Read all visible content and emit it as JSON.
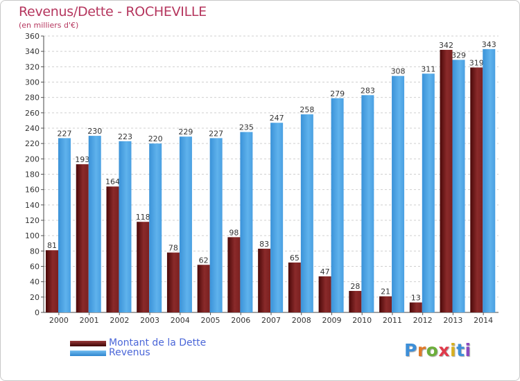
{
  "header": {
    "title": "Revenus/Dette - ROCHEVILLE",
    "subtitle": "(en milliers d'€)"
  },
  "legend": {
    "items": [
      {
        "label": "Montant de la Dette",
        "color": "#7a1b1b"
      },
      {
        "label": "Revenus",
        "color": "#4ea6e6"
      }
    ]
  },
  "logo": {
    "text": "Proxiti"
  },
  "chart_data": {
    "type": "bar",
    "categories": [
      "2000",
      "2001",
      "2002",
      "2003",
      "2004",
      "2005",
      "2006",
      "2007",
      "2008",
      "2009",
      "2010",
      "2011",
      "2012",
      "2013",
      "2014"
    ],
    "series": [
      {
        "name": "Montant de la Dette",
        "color": "#7a1b1b",
        "values": [
          81,
          193,
          164,
          118,
          78,
          62,
          98,
          83,
          65,
          47,
          28,
          21,
          13,
          342,
          319
        ]
      },
      {
        "name": "Revenus",
        "color": "#4ea6e6",
        "values": [
          227,
          230,
          223,
          220,
          229,
          227,
          235,
          247,
          258,
          279,
          283,
          308,
          311,
          329,
          343
        ]
      }
    ],
    "title": "Revenus/Dette - ROCHEVILLE",
    "ylabel": "(en milliers d'€)",
    "ylim": [
      0,
      360
    ],
    "ytick_step": 20,
    "grid": true,
    "legend_position": "bottom-left"
  }
}
